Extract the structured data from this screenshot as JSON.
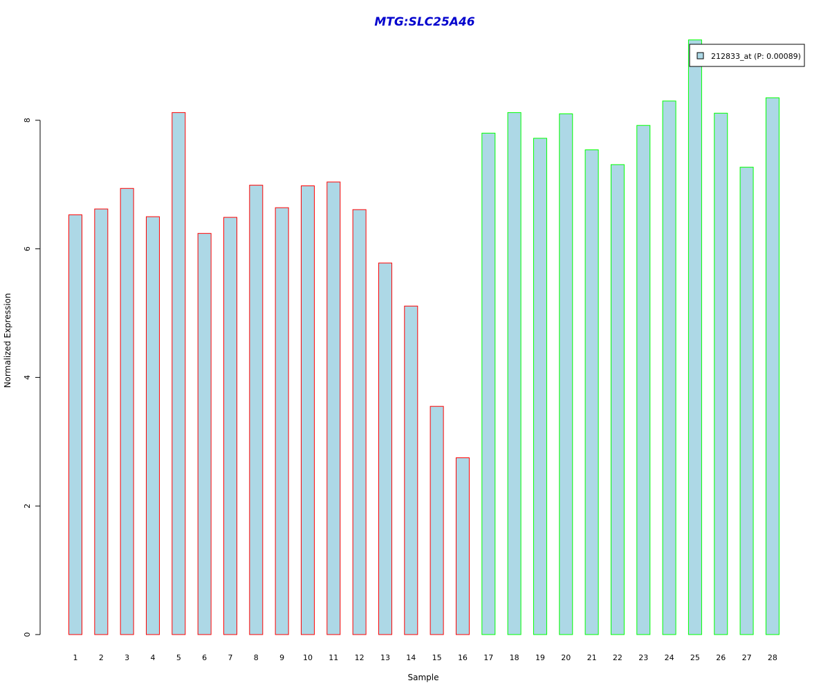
{
  "chart_data": {
    "type": "bar",
    "title": "MTG:SLC25A46",
    "xlabel": "Sample",
    "ylabel": "Normalized Expression",
    "categories": [
      "1",
      "2",
      "3",
      "4",
      "5",
      "6",
      "7",
      "8",
      "9",
      "10",
      "11",
      "12",
      "13",
      "14",
      "15",
      "16",
      "17",
      "18",
      "19",
      "20",
      "21",
      "22",
      "23",
      "24",
      "25",
      "26",
      "27",
      "28"
    ],
    "series": [
      {
        "name": "212833_at (P: 0.00089)",
        "values": [
          6.53,
          6.62,
          6.94,
          6.5,
          8.12,
          6.24,
          6.49,
          6.99,
          6.64,
          6.98,
          7.04,
          6.61,
          5.78,
          5.11,
          3.55,
          2.75,
          7.8,
          8.12,
          7.72,
          8.1,
          7.54,
          7.31,
          7.92,
          8.3,
          9.25,
          8.11,
          7.27,
          8.35
        ]
      }
    ],
    "group_outline": [
      "red",
      "red",
      "red",
      "red",
      "red",
      "red",
      "red",
      "red",
      "red",
      "red",
      "red",
      "red",
      "red",
      "red",
      "red",
      "red",
      "green",
      "green",
      "green",
      "green",
      "green",
      "green",
      "green",
      "green",
      "green",
      "green",
      "green",
      "green"
    ],
    "yticks": [
      0,
      2,
      4,
      6,
      8
    ],
    "ylim": [
      0,
      9.25
    ],
    "grid": false,
    "legend_placement": "top-right",
    "colors": {
      "bar_fill": "#add8e6",
      "outline_red": "#ff0000",
      "outline_green": "#00ff00",
      "title": "#0000cd",
      "axis": "#000000"
    }
  }
}
